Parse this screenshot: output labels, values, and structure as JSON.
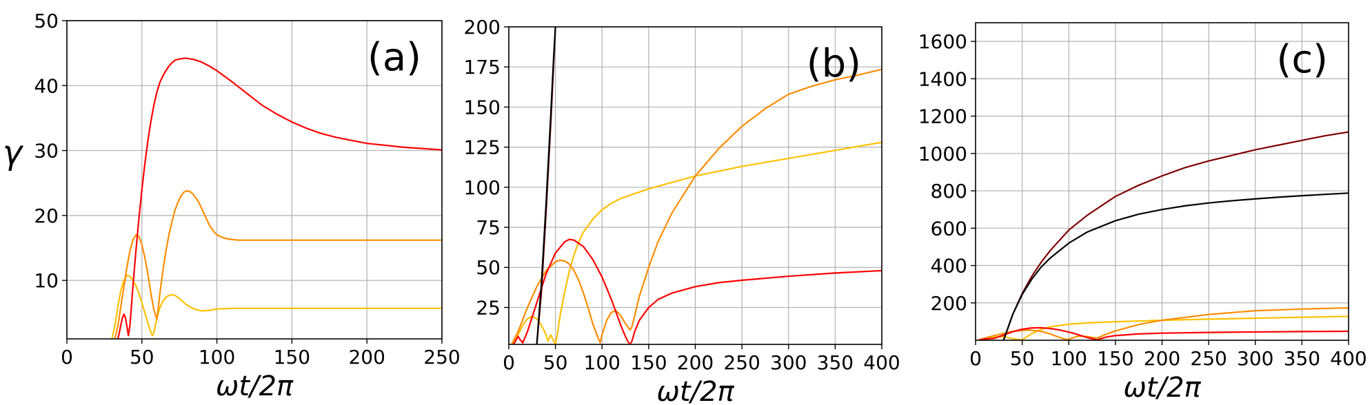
{
  "chart_data": [
    {
      "type": "line",
      "panel_label": "(a)",
      "ylabel": "γ",
      "xlabel": "ωt/2π",
      "xlim": [
        0,
        250
      ],
      "ylim": [
        1,
        50
      ],
      "xticks": [
        0,
        50,
        100,
        150,
        200,
        250
      ],
      "xtick_labels": [
        "0",
        "50",
        "100",
        "150",
        "200",
        "250"
      ],
      "yticks": [
        10,
        20,
        30,
        40,
        50
      ],
      "ytick_labels": [
        "10",
        "20",
        "30",
        "40",
        "50"
      ],
      "grid": true,
      "series": [
        {
          "color": "#ffc000",
          "x": [
            30,
            32,
            34,
            36,
            38,
            40,
            42,
            44,
            46,
            48,
            50,
            52,
            54,
            56,
            57,
            58,
            60,
            62,
            64,
            66,
            68,
            70,
            72,
            74,
            76,
            78,
            80,
            85,
            90,
            95,
            100,
            110,
            120,
            150,
            200,
            250
          ],
          "y": [
            1,
            3,
            6,
            8.5,
            10,
            10.8,
            10.6,
            10,
            9.2,
            8,
            6.6,
            5,
            3.5,
            2,
            1.5,
            2,
            4.2,
            5.8,
            6.8,
            7.4,
            7.7,
            7.8,
            7.7,
            7.4,
            7,
            6.6,
            6.2,
            5.6,
            5.3,
            5.4,
            5.6,
            5.7,
            5.7,
            5.7,
            5.7,
            5.7
          ]
        },
        {
          "color": "#ff8c00",
          "x": [
            32,
            34,
            36,
            38,
            40,
            42,
            44,
            46,
            48,
            50,
            52,
            54,
            56,
            58,
            60,
            62,
            64,
            66,
            68,
            70,
            72,
            74,
            76,
            78,
            80,
            82,
            84,
            86,
            88,
            90,
            92,
            95,
            98,
            100,
            105,
            110,
            115,
            120,
            130,
            150,
            200,
            250
          ],
          "y": [
            1,
            3,
            6,
            9,
            12,
            14.5,
            16.2,
            17,
            16.8,
            15.5,
            13.5,
            11,
            8,
            5.5,
            4,
            8,
            11.5,
            14.5,
            17,
            19,
            20.8,
            22,
            23,
            23.6,
            23.8,
            23.7,
            23.3,
            22.7,
            22,
            21,
            20,
            18.5,
            17.5,
            17,
            16.5,
            16.3,
            16.2,
            16.2,
            16.2,
            16.2,
            16.2,
            16.2
          ]
        },
        {
          "color": "#ff0000",
          "x": [
            34,
            35,
            36,
            37,
            38,
            39,
            40,
            41,
            42,
            44,
            46,
            48,
            50,
            52,
            54,
            56,
            58,
            60,
            62,
            64,
            66,
            68,
            70,
            72,
            75,
            78,
            80,
            85,
            90,
            95,
            100,
            110,
            120,
            130,
            140,
            150,
            160,
            170,
            180,
            200,
            225,
            250
          ],
          "y": [
            1,
            2,
            3.2,
            4.2,
            4.8,
            4.3,
            3,
            1.5,
            3,
            9,
            14.5,
            19.5,
            24,
            28,
            31.5,
            34.5,
            37,
            39,
            40.5,
            41.5,
            42.3,
            43,
            43.5,
            43.9,
            44.1,
            44.2,
            44.2,
            44,
            43.6,
            43,
            42.3,
            40.6,
            38.8,
            37,
            35.6,
            34.4,
            33.4,
            32.6,
            32,
            31.1,
            30.5,
            30.1
          ]
        }
      ]
    },
    {
      "type": "line",
      "panel_label": "(b)",
      "xlabel": "ωt/2π",
      "xlim": [
        0,
        400
      ],
      "ylim": [
        2,
        200
      ],
      "xticks": [
        0,
        50,
        100,
        150,
        200,
        250,
        300,
        350,
        400
      ],
      "xtick_labels": [
        "0",
        "50",
        "100",
        "150",
        "200",
        "250",
        "300",
        "350",
        "400"
      ],
      "yticks": [
        25,
        50,
        75,
        100,
        125,
        150,
        175,
        200
      ],
      "ytick_labels": [
        "25",
        "50",
        "75",
        "100",
        "125",
        "150",
        "175",
        "200"
      ],
      "grid": true,
      "series": [
        {
          "color": "#ffc000",
          "x": [
            5,
            10,
            15,
            20,
            25,
            30,
            35,
            40,
            42,
            45,
            48,
            50,
            52,
            55,
            60,
            65,
            70,
            75,
            80,
            90,
            100,
            110,
            120,
            130,
            140,
            150,
            175,
            200,
            250,
            300,
            350,
            400
          ],
          "y": [
            3,
            8,
            14,
            18,
            19.5,
            18,
            14,
            8,
            4,
            8,
            4,
            2,
            8,
            20,
            35,
            48,
            58,
            66,
            72,
            80,
            86,
            90,
            93,
            95,
            97,
            99,
            103,
            107,
            113,
            118,
            123,
            128
          ]
        },
        {
          "color": "#ff8c00",
          "x": [
            3,
            10,
            20,
            30,
            40,
            50,
            55,
            60,
            65,
            70,
            75,
            80,
            85,
            90,
            95,
            98,
            100,
            105,
            110,
            115,
            120,
            125,
            130,
            132,
            135,
            140,
            150,
            160,
            175,
            200,
            225,
            250,
            275,
            300,
            325,
            350,
            375,
            400
          ],
          "y": [
            2,
            10,
            25,
            38,
            48,
            53.5,
            54.5,
            54,
            52,
            48,
            42,
            34,
            25,
            15,
            7,
            3,
            8,
            17,
            22,
            23,
            20,
            15,
            11,
            13,
            20,
            32,
            50,
            66,
            84,
            107,
            124,
            138,
            149,
            158,
            163,
            167,
            170,
            173.5
          ]
        },
        {
          "color": "#ff0000",
          "x": [
            5,
            8,
            10,
            12,
            15,
            20,
            30,
            40,
            50,
            60,
            65,
            70,
            80,
            90,
            100,
            110,
            115,
            120,
            125,
            128,
            130,
            132,
            135,
            140,
            150,
            160,
            175,
            200,
            225,
            250,
            300,
            350,
            400
          ],
          "y": [
            2,
            5,
            7,
            5,
            3,
            10,
            28,
            46,
            59,
            66,
            67.5,
            67,
            63,
            55,
            44,
            30,
            22,
            14,
            7,
            3.5,
            2,
            4,
            10,
            17,
            25,
            30,
            34,
            38,
            40.5,
            42,
            44.5,
            46.5,
            48
          ]
        },
        {
          "color": "#800000",
          "x": [
            30,
            35,
            40,
            45,
            50
          ],
          "y": [
            2,
            35,
            85,
            140,
            200
          ]
        },
        {
          "color": "#000000",
          "x": [
            30,
            35,
            40,
            45,
            48,
            50
          ],
          "y": [
            2,
            40,
            90,
            145,
            180,
            200
          ]
        }
      ]
    },
    {
      "type": "line",
      "panel_label": "(c)",
      "xlabel": "ωt/2π",
      "xlim": [
        0,
        400
      ],
      "ylim": [
        0,
        1700
      ],
      "xticks": [
        0,
        50,
        100,
        150,
        200,
        250,
        300,
        350,
        400
      ],
      "xtick_labels": [
        "0",
        "50",
        "100",
        "150",
        "200",
        "250",
        "300",
        "350",
        "400"
      ],
      "yticks": [
        200,
        400,
        600,
        800,
        1000,
        1200,
        1400,
        1600
      ],
      "ytick_labels": [
        "200",
        "400",
        "600",
        "800",
        "1000",
        "1200",
        "1400",
        "1600"
      ],
      "grid": true,
      "series": [
        {
          "color": "#ffc000",
          "x": [
            5,
            10,
            20,
            30,
            40,
            50,
            60,
            70,
            80,
            100,
            120,
            150,
            200,
            250,
            300,
            350,
            400
          ],
          "y": [
            2,
            8,
            18,
            19,
            8,
            2,
            35,
            58,
            72,
            86,
            93,
            99,
            107,
            113,
            118,
            123,
            128
          ]
        },
        {
          "color": "#ff8c00",
          "x": [
            3,
            20,
            40,
            55,
            60,
            70,
            80,
            90,
            98,
            110,
            120,
            130,
            140,
            150,
            175,
            200,
            250,
            300,
            350,
            400
          ],
          "y": [
            2,
            25,
            48,
            54.5,
            54,
            48,
            34,
            15,
            3,
            22,
            20,
            11,
            32,
            50,
            84,
            107,
            138,
            158,
            167,
            173.5
          ]
        },
        {
          "color": "#ff0000",
          "x": [
            5,
            10,
            20,
            30,
            40,
            50,
            60,
            70,
            80,
            90,
            100,
            110,
            120,
            130,
            140,
            150,
            175,
            200,
            250,
            300,
            350,
            400
          ],
          "y": [
            2,
            7,
            10,
            28,
            46,
            59,
            66,
            67,
            63,
            55,
            44,
            30,
            14,
            2,
            17,
            25,
            34,
            38,
            42,
            44.5,
            46.5,
            48
          ]
        },
        {
          "color": "#800000",
          "x": [
            30,
            35,
            40,
            50,
            60,
            70,
            80,
            100,
            120,
            150,
            175,
            200,
            225,
            250,
            275,
            300,
            325,
            350,
            375,
            400
          ],
          "y": [
            0,
            70,
            140,
            250,
            340,
            415,
            480,
            590,
            670,
            770,
            830,
            880,
            925,
            960,
            990,
            1020,
            1045,
            1070,
            1095,
            1115
          ]
        },
        {
          "color": "#000000",
          "x": [
            30,
            35,
            40,
            50,
            60,
            70,
            80,
            100,
            120,
            150,
            175,
            200,
            225,
            250,
            275,
            300,
            325,
            350,
            375,
            400
          ],
          "y": [
            0,
            70,
            140,
            245,
            325,
            390,
            440,
            520,
            580,
            640,
            675,
            700,
            720,
            735,
            747,
            757,
            766,
            774,
            781,
            788
          ]
        }
      ]
    }
  ]
}
